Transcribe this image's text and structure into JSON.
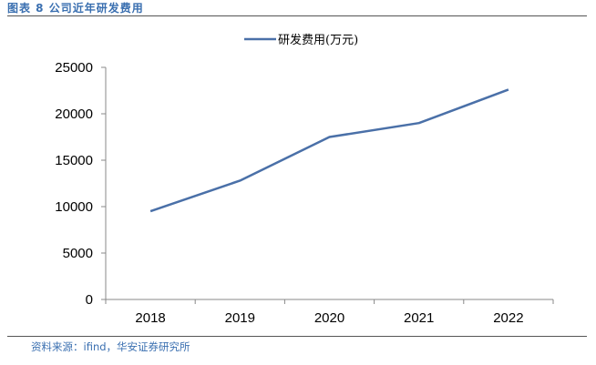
{
  "figure": {
    "title": "图表 8 公司近年研发费用",
    "source": "资料来源：ifind，华安证券研究所"
  },
  "chart_data": {
    "type": "line",
    "title": "",
    "xlabel": "",
    "ylabel": "",
    "categories": [
      "2018",
      "2019",
      "2020",
      "2021",
      "2022"
    ],
    "series": [
      {
        "name": "研发费用(万元)",
        "values": [
          9500,
          12800,
          17500,
          19000,
          22600
        ],
        "color": "#4a70a8"
      }
    ],
    "ylim": [
      0,
      25000
    ],
    "yticks": [
      "0",
      "5000",
      "10000",
      "15000",
      "20000",
      "25000"
    ],
    "legend_position": "top-center",
    "grid": false
  }
}
